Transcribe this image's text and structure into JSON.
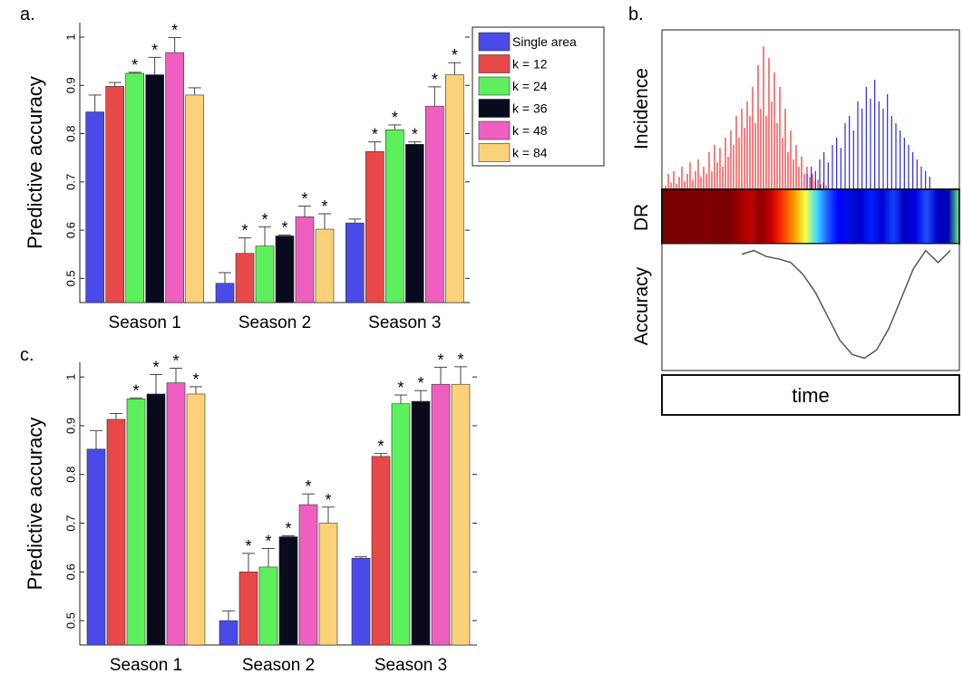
{
  "panels": {
    "a": {
      "label": "a."
    },
    "b": {
      "label": "b."
    },
    "c": {
      "label": "c."
    }
  },
  "legend": {
    "entries": [
      "Single area",
      "k = 12",
      "k = 24",
      "k = 36",
      "k = 48",
      "k = 84"
    ],
    "colors": [
      "#4a4ae8",
      "#e84848",
      "#5cf05c",
      "#0a0a1e",
      "#ee5fbf",
      "#fbd27a"
    ]
  },
  "chart_data": [
    {
      "panel": "a.",
      "type": "bar",
      "ylabel": "Predictive accuracy",
      "ylim": [
        0.45,
        1.03
      ],
      "yticks": [
        0.5,
        0.6,
        0.7,
        0.8,
        0.9,
        1.0
      ],
      "ytick_labels": [
        "0.5",
        "0.6",
        "0.7",
        "0.8",
        "0.9",
        "1"
      ],
      "categories": [
        "Season 1",
        "Season 2",
        "Season 3"
      ],
      "series": [
        {
          "name": "Single area",
          "values": [
            0.845,
            0.49,
            0.615
          ],
          "errors": [
            0.035,
            0.022,
            0.008
          ],
          "significant": [
            false,
            false,
            false
          ]
        },
        {
          "name": "k = 12",
          "values": [
            0.898,
            0.552,
            0.763
          ],
          "errors": [
            0.008,
            0.032,
            0.02
          ],
          "significant": [
            false,
            true,
            true
          ]
        },
        {
          "name": "k = 24",
          "values": [
            0.925,
            0.567,
            0.808
          ],
          "errors": [
            0.002,
            0.04,
            0.01
          ],
          "significant": [
            true,
            true,
            true
          ]
        },
        {
          "name": "k = 36",
          "values": [
            0.922,
            0.588,
            0.778
          ],
          "errors": [
            0.036,
            0.002,
            0.005
          ],
          "significant": [
            true,
            true,
            true
          ]
        },
        {
          "name": "k = 48",
          "values": [
            0.968,
            0.628,
            0.857
          ],
          "errors": [
            0.031,
            0.022,
            0.04
          ],
          "significant": [
            true,
            true,
            true
          ]
        },
        {
          "name": "k = 84",
          "values": [
            0.88,
            0.602,
            0.922
          ],
          "errors": [
            0.015,
            0.032,
            0.025
          ],
          "significant": [
            false,
            true,
            true
          ]
        }
      ],
      "marker": "*",
      "legend": "top-right"
    },
    {
      "panel": "c.",
      "type": "bar",
      "ylabel": "Predictive accuracy",
      "ylim": [
        0.45,
        1.03
      ],
      "yticks": [
        0.5,
        0.6,
        0.7,
        0.8,
        0.9,
        1.0
      ],
      "ytick_labels": [
        "0.5",
        "0.6",
        "0.7",
        "0.8",
        "0.9",
        "1"
      ],
      "categories": [
        "Season 1",
        "Season 2",
        "Season 3"
      ],
      "series": [
        {
          "name": "Single area",
          "values": [
            0.852,
            0.5,
            0.628
          ],
          "errors": [
            0.038,
            0.02,
            0.003
          ],
          "significant": [
            false,
            false,
            false
          ]
        },
        {
          "name": "k = 12",
          "values": [
            0.913,
            0.6,
            0.837
          ],
          "errors": [
            0.012,
            0.038,
            0.006
          ],
          "significant": [
            false,
            true,
            true
          ]
        },
        {
          "name": "k = 24",
          "values": [
            0.955,
            0.61,
            0.945
          ],
          "errors": [
            0.002,
            0.038,
            0.018
          ],
          "significant": [
            true,
            true,
            true
          ]
        },
        {
          "name": "k = 36",
          "values": [
            0.965,
            0.672,
            0.95
          ],
          "errors": [
            0.04,
            0.002,
            0.022
          ],
          "significant": [
            true,
            true,
            true
          ]
        },
        {
          "name": "k = 48",
          "values": [
            0.988,
            0.738,
            0.985
          ],
          "errors": [
            0.03,
            0.022,
            0.035
          ],
          "significant": [
            true,
            true,
            true
          ]
        },
        {
          "name": "k = 84",
          "values": [
            0.965,
            0.7,
            0.985
          ],
          "errors": [
            0.015,
            0.033,
            0.036
          ],
          "significant": [
            true,
            true,
            true
          ]
        }
      ],
      "marker": "*"
    },
    {
      "panel": "b.",
      "type": "line",
      "track_labels": [
        "Incidence",
        "DR",
        "Accuracy"
      ],
      "xlabel": "time",
      "incidence": {
        "colors": [
          "#e83030",
          "#2a2ad8"
        ],
        "red": [
          0.02,
          0.1,
          0.04,
          0.12,
          0.03,
          0.08,
          0.15,
          0.05,
          0.1,
          0.18,
          0.06,
          0.12,
          0.2,
          0.08,
          0.15,
          0.1,
          0.25,
          0.12,
          0.3,
          0.18,
          0.28,
          0.15,
          0.35,
          0.22,
          0.4,
          0.3,
          0.5,
          0.35,
          0.55,
          0.42,
          0.6,
          0.5,
          0.7,
          0.45,
          0.85,
          0.55,
          0.98,
          0.5,
          0.9,
          0.6,
          0.8,
          0.45,
          0.7,
          0.35,
          0.55,
          0.25,
          0.4,
          0.2,
          0.3,
          0.15,
          0.22,
          0.1,
          0.15,
          0.08,
          0.1,
          0.05,
          0.06,
          0.03,
          0.04,
          0.02
        ],
        "blue": [
          0.1,
          0.15,
          0.12,
          0.2,
          0.25,
          0.18,
          0.3,
          0.35,
          0.28,
          0.45,
          0.5,
          0.4,
          0.6,
          0.55,
          0.7,
          0.62,
          0.75,
          0.6,
          0.55,
          0.65,
          0.5,
          0.45,
          0.4,
          0.35,
          0.3,
          0.25,
          0.2,
          0.15,
          0.12,
          0.08
        ]
      },
      "dr_colors": [
        "#7a0000",
        "#7a0000",
        "#7c0000",
        "#7a0000",
        "#800000",
        "#7a0000",
        "#7a0000",
        "#9a0000",
        "#c00000",
        "#8a0000",
        "#cc0000",
        "#ff3a00",
        "#ff9a00",
        "#ffff40",
        "#40e0ff",
        "#2060ff",
        "#0000ff",
        "#0010e0",
        "#0000c8",
        "#0020ff",
        "#0000d0",
        "#1040ff",
        "#0000c0",
        "#0000e0",
        "#2050ff",
        "#0000c8",
        "#0000b0",
        "#60ff80"
      ],
      "accuracy": [
        0.92,
        0.95,
        0.9,
        0.88,
        0.85,
        0.75,
        0.6,
        0.4,
        0.2,
        0.08,
        0.05,
        0.12,
        0.3,
        0.55,
        0.8,
        0.95,
        0.85,
        0.95
      ]
    }
  ]
}
